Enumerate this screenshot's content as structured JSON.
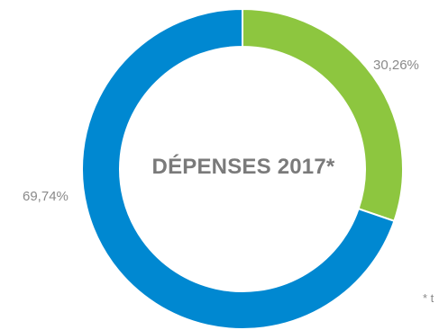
{
  "chart_data": {
    "type": "pie",
    "donut": true,
    "title": "DÉPENSES 2017*",
    "slices": [
      {
        "value": 30.26,
        "label": "30,26%",
        "color": "#8dc63f"
      },
      {
        "value": 69.74,
        "label": "69,74%",
        "color": "#0088d1"
      }
    ],
    "footnote": "* t"
  }
}
